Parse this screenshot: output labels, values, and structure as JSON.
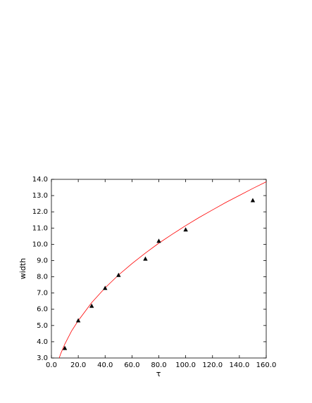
{
  "chart_data": {
    "type": "scatter",
    "x_label": "τ",
    "y_label": "width",
    "xlim": [
      0,
      160
    ],
    "ylim": [
      3,
      14
    ],
    "xticks": [
      {
        "value": 0,
        "label": "0.0"
      },
      {
        "value": 20,
        "label": "20.0"
      },
      {
        "value": 40,
        "label": "40.0"
      },
      {
        "value": 60,
        "label": "60.0"
      },
      {
        "value": 80,
        "label": "80.0"
      },
      {
        "value": 100,
        "label": "100.0"
      },
      {
        "value": 120,
        "label": "120.0"
      },
      {
        "value": 140,
        "label": "140.0"
      },
      {
        "value": 160,
        "label": "160.0"
      }
    ],
    "yticks": [
      {
        "value": 3,
        "label": "3.0"
      },
      {
        "value": 4,
        "label": "4.0"
      },
      {
        "value": 5,
        "label": "5.0"
      },
      {
        "value": 6,
        "label": "6.0"
      },
      {
        "value": 7,
        "label": "7.0"
      },
      {
        "value": 8,
        "label": "8.0"
      },
      {
        "value": 9,
        "label": "9.0"
      },
      {
        "value": 10,
        "label": "10.0"
      },
      {
        "value": 11,
        "label": "11.0"
      },
      {
        "value": 12,
        "label": "12.0"
      },
      {
        "value": 13,
        "label": "13.0"
      },
      {
        "value": 14,
        "label": "14.0"
      }
    ],
    "series": [
      {
        "type": "line",
        "color": "#ff0000",
        "x": [
          5.8,
          7,
          10,
          15,
          20,
          30,
          40,
          50,
          60,
          70,
          80,
          90,
          100,
          110,
          120,
          130,
          140,
          150,
          160
        ],
        "values": [
          3.0,
          3.28,
          3.86,
          4.66,
          5.3,
          6.41,
          7.32,
          8.11,
          8.81,
          9.46,
          10.07,
          10.62,
          11.15,
          11.65,
          12.12,
          12.58,
          13.01,
          13.44,
          13.85
        ]
      },
      {
        "type": "scatter",
        "color": "#000000",
        "marker": "triangle",
        "x": [
          10,
          20,
          30,
          40,
          50,
          70,
          80,
          100,
          150
        ],
        "values": [
          3.6,
          5.3,
          6.2,
          7.3,
          8.1,
          9.1,
          10.2,
          10.9,
          12.7
        ]
      }
    ]
  }
}
